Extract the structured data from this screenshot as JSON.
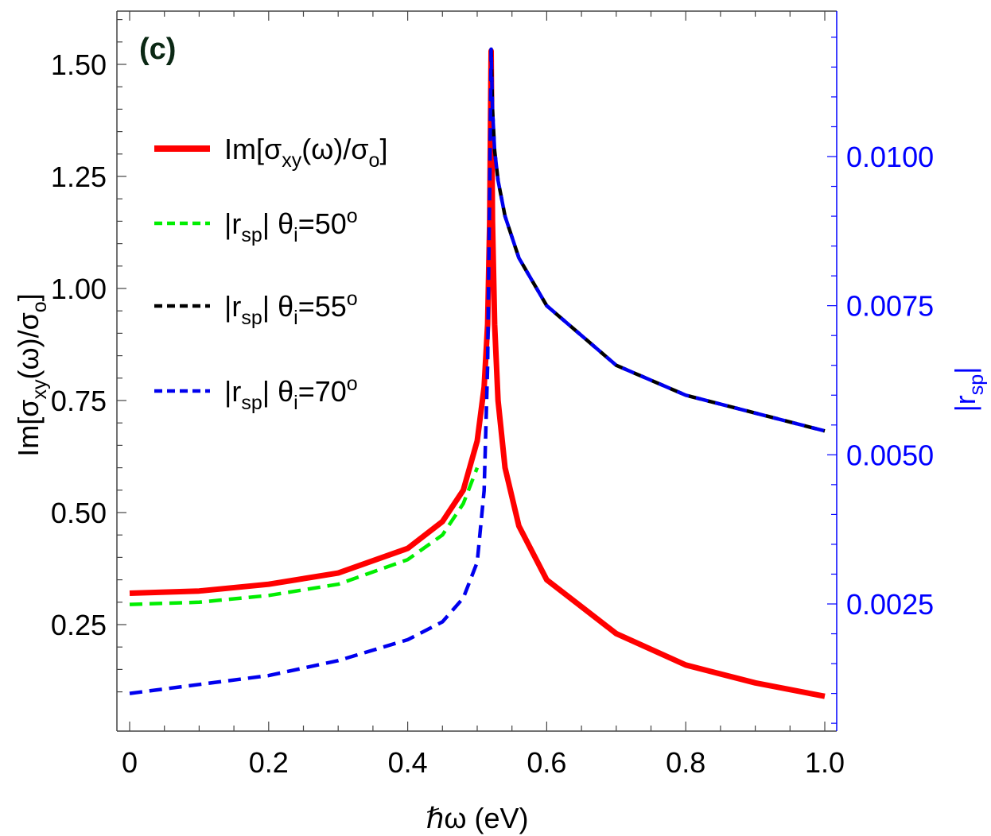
{
  "chart_data": {
    "type": "line",
    "panel_label": "(c)",
    "xlabel": "ℏω (eV)",
    "ylabel_left": {
      "pre": "Im[σ",
      "sub1": "xy",
      "mid": "(ω)/σ",
      "sub2": "o",
      "post": "]"
    },
    "ylabel_right": {
      "pre": "|r",
      "sub": "sp",
      "post": "|"
    },
    "xlim": [
      0,
      1.0
    ],
    "ylim_left": [
      0.05,
      1.6
    ],
    "ylim_right": [
      0.0005,
      0.0121
    ],
    "x_ticks": [
      "0",
      "0.2",
      "0.4",
      "0.6",
      "0.8",
      "1.0"
    ],
    "y_left_ticks": [
      "0.25",
      "0.50",
      "0.75",
      "1.00",
      "1.25",
      "1.50"
    ],
    "y_right_ticks": [
      "0.0025",
      "0.0050",
      "0.0075",
      "0.0100"
    ],
    "colors": {
      "axis_left": "#444444",
      "axis_right": "#0000ff",
      "panel_label": "#0b2814"
    },
    "legend": {
      "position": "upper-left",
      "entries": [
        {
          "series": 0,
          "pre": "Im[σ",
          "sub1": "xy",
          "mid": "(ω)/σ",
          "sub2": "o",
          "post": "]"
        },
        {
          "series": 1,
          "pre": "|r",
          "sub1": "sp",
          "mid": "| θ",
          "sub2": "i",
          "post": "=50",
          "sup": "o"
        },
        {
          "series": 2,
          "pre": "|r",
          "sub1": "sp",
          "mid": "| θ",
          "sub2": "i",
          "post": "=55",
          "sup": "o"
        },
        {
          "series": 3,
          "pre": "|r",
          "sub1": "sp",
          "mid": "| θ",
          "sub2": "i",
          "post": "=70",
          "sup": "o"
        }
      ]
    },
    "series": [
      {
        "axis": "left",
        "color": "#ff0000",
        "dash": "solid",
        "x": [
          0,
          0.1,
          0.2,
          0.3,
          0.4,
          0.45,
          0.48,
          0.5,
          0.51,
          0.515,
          0.518,
          0.52,
          0.522,
          0.525,
          0.53,
          0.54,
          0.56,
          0.6,
          0.7,
          0.8,
          0.9,
          1.0
        ],
        "y": [
          0.32,
          0.325,
          0.34,
          0.365,
          0.42,
          0.48,
          0.55,
          0.66,
          0.78,
          0.92,
          1.15,
          1.53,
          1.15,
          0.92,
          0.75,
          0.6,
          0.47,
          0.35,
          0.23,
          0.16,
          0.12,
          0.09
        ]
      },
      {
        "axis": "left",
        "color": "#00ee00",
        "dash": "dashed",
        "x": [
          0,
          0.1,
          0.2,
          0.3,
          0.4,
          0.45,
          0.48,
          0.5
        ],
        "y": [
          0.295,
          0.3,
          0.315,
          0.34,
          0.395,
          0.45,
          0.52,
          0.6
        ]
      },
      {
        "axis": "right",
        "color": "#000000",
        "dash": "dashed",
        "x": [
          0.52,
          0.522,
          0.525,
          0.53,
          0.54,
          0.56,
          0.6,
          0.7,
          0.8,
          0.9,
          1.0
        ],
        "y": [
          0.0118,
          0.0108,
          0.0101,
          0.0096,
          0.009,
          0.0083,
          0.0075,
          0.0065,
          0.006,
          0.0057,
          0.0054
        ]
      },
      {
        "axis": "right",
        "color": "#0000ee",
        "dash": "dashed",
        "x": [
          0,
          0.1,
          0.2,
          0.3,
          0.4,
          0.45,
          0.48,
          0.5,
          0.51,
          0.515,
          0.518,
          0.52,
          0.522,
          0.525,
          0.53,
          0.54,
          0.56,
          0.6,
          0.7,
          0.8,
          0.9,
          1.0
        ],
        "y": [
          0.001,
          0.00115,
          0.0013,
          0.00155,
          0.0019,
          0.0022,
          0.0026,
          0.0032,
          0.0044,
          0.0065,
          0.0095,
          0.0118,
          0.0108,
          0.0101,
          0.0096,
          0.009,
          0.0083,
          0.0075,
          0.0065,
          0.006,
          0.0057,
          0.0054
        ]
      }
    ]
  }
}
